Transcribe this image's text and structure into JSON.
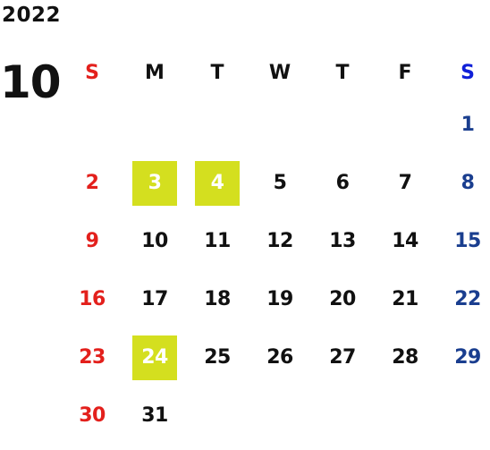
{
  "year": "2022",
  "month": "10",
  "weekday_headers": [
    "S",
    "M",
    "T",
    "W",
    "T",
    "F",
    "S"
  ],
  "weeks": [
    [
      "",
      "",
      "",
      "",
      "",
      "",
      "1"
    ],
    [
      "2",
      "3",
      "4",
      "5",
      "6",
      "7",
      "8"
    ],
    [
      "9",
      "10",
      "11",
      "12",
      "13",
      "14",
      "15"
    ],
    [
      "16",
      "17",
      "18",
      "19",
      "20",
      "21",
      "22"
    ],
    [
      "23",
      "24",
      "25",
      "26",
      "27",
      "28",
      "29"
    ],
    [
      "30",
      "31",
      "",
      "",
      "",
      "",
      ""
    ]
  ],
  "highlighted_days": [
    "3",
    "4",
    "24"
  ],
  "colors": {
    "sunday": "#e3201c",
    "saturday": "#1a3e8f",
    "saturday_header": "#1020d8",
    "weekday": "#111111",
    "highlight_bg": "#d4df1f",
    "highlight_text": "#ffffff"
  }
}
